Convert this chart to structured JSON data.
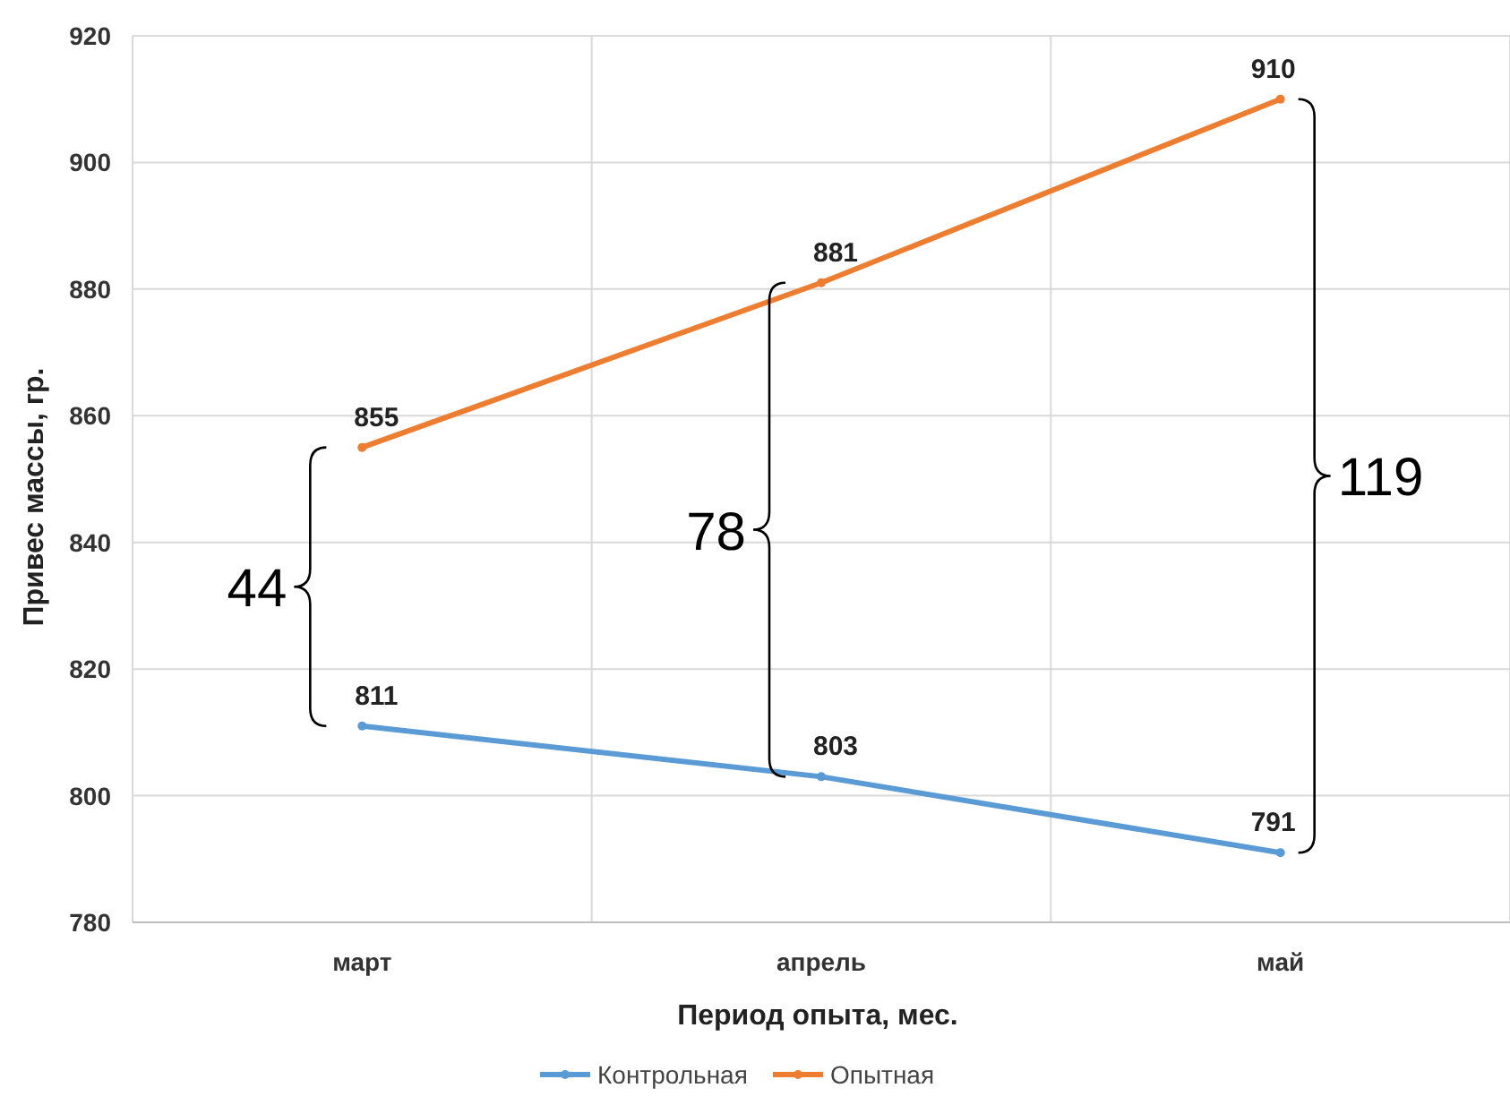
{
  "chart_data": {
    "type": "line",
    "xlabel": "Период опыта, мес.",
    "ylabel": "Привес массы, гр.",
    "categories": [
      "март",
      "апрель",
      "май"
    ],
    "series": [
      {
        "name": "Контрольная",
        "color": "#5b9bd5",
        "values": [
          811,
          803,
          791
        ]
      },
      {
        "name": "Опытная",
        "color": "#ed7d31",
        "values": [
          855,
          881,
          910
        ]
      }
    ],
    "ylim": [
      780,
      920
    ],
    "yticks": [
      780,
      800,
      820,
      840,
      860,
      880,
      900,
      920
    ],
    "grid": true,
    "legend": "bottom",
    "marker": "circle",
    "data_labels": true,
    "annotations": [
      "44",
      "78",
      "119"
    ]
  }
}
